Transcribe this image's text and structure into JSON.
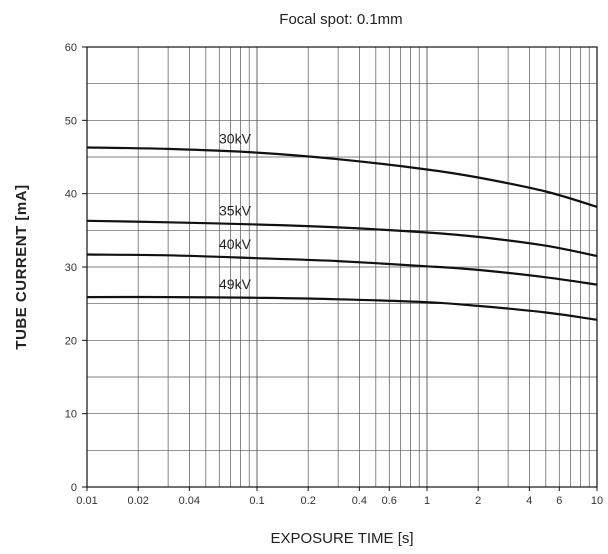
{
  "chart_data": {
    "type": "line",
    "title": "Focal spot: 0.1mm",
    "xlabel": "EXPOSURE TIME [s]",
    "ylabel": "TUBE CURRENT [mA]",
    "xscale": "log",
    "xlim": [
      0.01,
      10
    ],
    "ylim": [
      0,
      60
    ],
    "grid": true,
    "x_tick_labels": [
      "0.01",
      "0.02",
      "0.04",
      "0.1",
      "0.2",
      "0.4",
      "0.6",
      "1",
      "2",
      "4",
      "6",
      "10"
    ],
    "y_tick_labels": [
      "0",
      "10",
      "20",
      "30",
      "40",
      "50",
      "60"
    ],
    "series": [
      {
        "name": "30kV",
        "x": [
          0.01,
          0.03,
          0.1,
          0.3,
          1,
          2,
          5,
          10
        ],
        "values": [
          46.3,
          46.1,
          45.6,
          44.7,
          43.3,
          42.2,
          40.3,
          38.2
        ]
      },
      {
        "name": "35kV",
        "x": [
          0.01,
          0.03,
          0.1,
          0.3,
          1,
          2,
          5,
          10
        ],
        "values": [
          36.3,
          36.1,
          35.8,
          35.4,
          34.7,
          34.1,
          32.9,
          31.5
        ]
      },
      {
        "name": "40kV",
        "x": [
          0.01,
          0.03,
          0.1,
          0.3,
          1,
          2,
          5,
          10
        ],
        "values": [
          31.7,
          31.6,
          31.2,
          30.8,
          30.1,
          29.6,
          28.6,
          27.6
        ]
      },
      {
        "name": "49kV",
        "x": [
          0.01,
          0.03,
          0.1,
          0.3,
          1,
          2,
          5,
          10
        ],
        "values": [
          25.9,
          25.9,
          25.8,
          25.6,
          25.2,
          24.7,
          23.8,
          22.8
        ]
      }
    ]
  }
}
